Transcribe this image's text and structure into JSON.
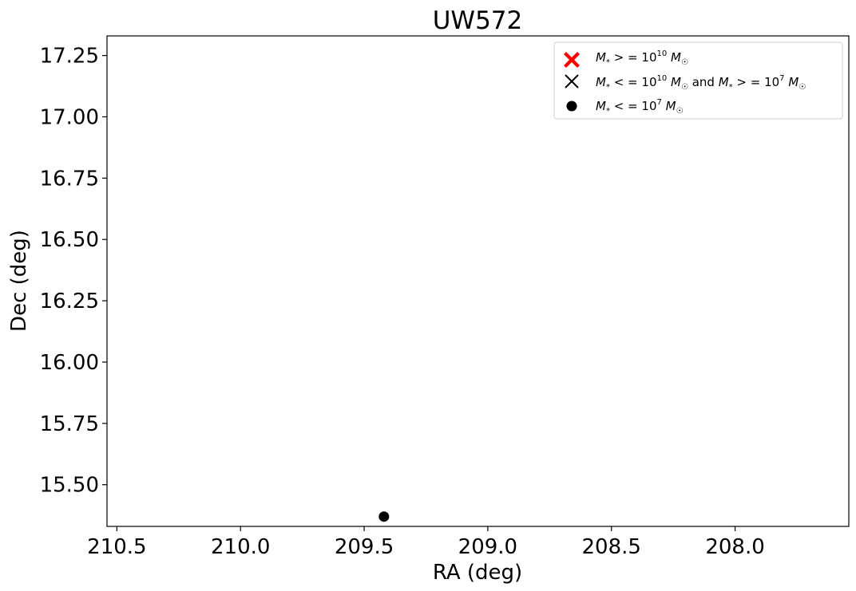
{
  "chart_data": {
    "type": "scatter",
    "title": "UW572",
    "xlabel": "RA (deg)",
    "ylabel": "Dec (deg)",
    "xlim": [
      210.54,
      207.54
    ],
    "ylim": [
      15.33,
      17.33
    ],
    "x_inverted": true,
    "grid": false,
    "legend_placement": "top-right",
    "xticks": [
      210.5,
      210.0,
      209.5,
      209.0,
      208.5,
      208.0
    ],
    "xtick_labels": [
      "210.5",
      "210.0",
      "209.5",
      "209.0",
      "208.5",
      "208.0"
    ],
    "yticks": [
      15.5,
      15.75,
      16.0,
      16.25,
      16.5,
      16.75,
      17.0,
      17.25
    ],
    "ytick_labels": [
      "15.50",
      "15.75",
      "16.00",
      "16.25",
      "16.50",
      "16.75",
      "17.00",
      "17.25"
    ],
    "series": [
      {
        "name": "M* >= 10^10 M☉",
        "marker": "filled-x",
        "color": "#ff0000",
        "points": []
      },
      {
        "name": "M* <= 10^10 M☉ and M* >= 10^7 M☉",
        "marker": "x",
        "color": "#000000",
        "points": []
      },
      {
        "name": "M* <= 10^7 M☉",
        "marker": "circle",
        "color": "#000000",
        "points": [
          {
            "x": 209.42,
            "y": 15.37
          }
        ]
      }
    ]
  }
}
